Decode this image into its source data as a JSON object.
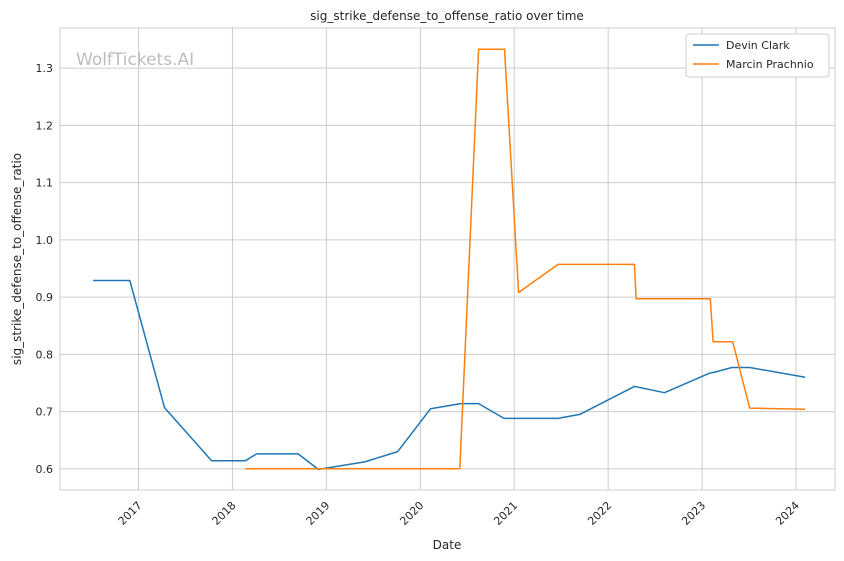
{
  "chart_data": {
    "type": "line",
    "title": "sig_strike_defense_to_offense_ratio over time",
    "xlabel": "Date",
    "ylabel": "sig_strike_defense_to_offense_ratio",
    "watermark": "WolfTickets.AI",
    "xlim": [
      "2016-03-01",
      "2024-06-01"
    ],
    "ylim": [
      0.563,
      1.37
    ],
    "x_ticks": [
      "2017",
      "2018",
      "2019",
      "2020",
      "2021",
      "2022",
      "2023",
      "2024"
    ],
    "y_ticks": [
      "0.6",
      "0.7",
      "0.8",
      "0.9",
      "1.0",
      "1.1",
      "1.2",
      "1.3"
    ],
    "grid": true,
    "legend_position": "top-right",
    "series": [
      {
        "name": "Devin Clark",
        "color": "#1f77b4",
        "points": [
          [
            "2016-07-08",
            0.929
          ],
          [
            "2016-11-28",
            0.929
          ],
          [
            "2017-04-12",
            0.707
          ],
          [
            "2017-10-12",
            0.614
          ],
          [
            "2018-02-20",
            0.614
          ],
          [
            "2018-04-05",
            0.626
          ],
          [
            "2018-09-13",
            0.626
          ],
          [
            "2018-12-01",
            0.599
          ],
          [
            "2019-05-30",
            0.612
          ],
          [
            "2019-10-05",
            0.63
          ],
          [
            "2020-02-10",
            0.705
          ],
          [
            "2020-06-06",
            0.714
          ],
          [
            "2020-08-15",
            0.714
          ],
          [
            "2020-11-22",
            0.688
          ],
          [
            "2021-06-20",
            0.688
          ],
          [
            "2021-09-13",
            0.695
          ],
          [
            "2022-04-13",
            0.744
          ],
          [
            "2022-08-08",
            0.733
          ],
          [
            "2023-01-30",
            0.767
          ],
          [
            "2023-02-20",
            0.769
          ],
          [
            "2023-04-27",
            0.777
          ],
          [
            "2023-07-05",
            0.777
          ],
          [
            "2024-02-06",
            0.76
          ]
        ]
      },
      {
        "name": "Marcin Prachnio",
        "color": "#ff7f0e",
        "points": [
          [
            "2018-02-20",
            0.6
          ],
          [
            "2020-06-03",
            0.6
          ],
          [
            "2020-08-15",
            1.333
          ],
          [
            "2020-11-24",
            1.333
          ],
          [
            "2021-01-18",
            0.908
          ],
          [
            "2021-06-20",
            0.957
          ],
          [
            "2022-04-13",
            0.957
          ],
          [
            "2022-04-20",
            0.897
          ],
          [
            "2023-02-02",
            0.897
          ],
          [
            "2023-02-13",
            0.822
          ],
          [
            "2023-04-30",
            0.822
          ],
          [
            "2023-07-05",
            0.706
          ],
          [
            "2024-02-06",
            0.704
          ]
        ]
      }
    ]
  }
}
